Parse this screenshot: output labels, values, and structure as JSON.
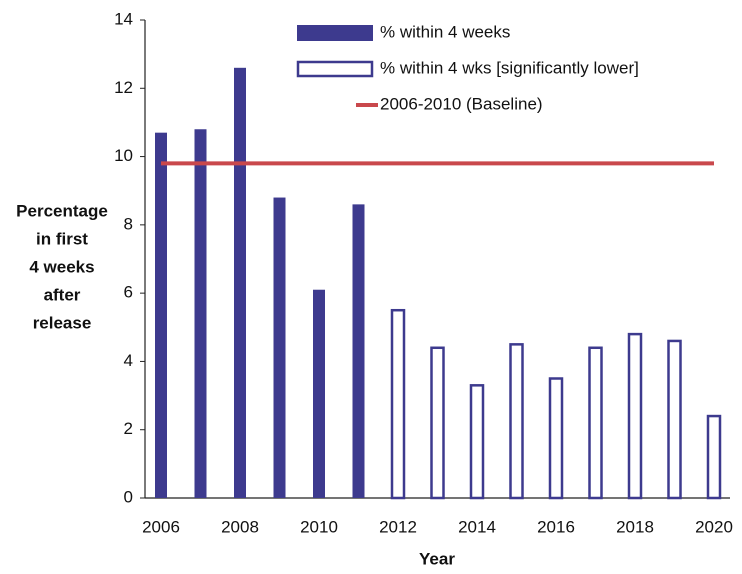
{
  "chart_data": {
    "type": "bar",
    "categories": [
      "2006",
      null,
      "2008",
      null,
      "2010",
      null,
      "2012",
      null,
      "2014",
      null,
      "2016",
      null,
      "2018",
      null,
      "2020"
    ],
    "series": [
      {
        "name": "% within 4 weeks",
        "type": "bar",
        "filled": true,
        "color": "#3d3a8e",
        "values": [
          10.7,
          10.8,
          12.6,
          8.8,
          6.1,
          8.6,
          null,
          null,
          null,
          null,
          null,
          null,
          null,
          null,
          null
        ]
      },
      {
        "name": "% within 4 wks [significantly lower]",
        "type": "bar",
        "filled": false,
        "color": "#3d3a8e",
        "values": [
          null,
          null,
          null,
          null,
          null,
          null,
          5.5,
          4.4,
          3.3,
          4.5,
          3.5,
          4.4,
          4.8,
          4.6,
          2.4
        ]
      },
      {
        "name": "2006-2010 (Baseline)",
        "type": "line",
        "color": "#c9484c",
        "values": [
          9.8,
          9.8,
          9.8,
          9.8,
          9.8,
          9.8,
          9.8,
          9.8,
          9.8,
          9.8,
          9.8,
          9.8,
          9.8,
          9.8,
          9.8
        ]
      }
    ],
    "xlabel": "Year",
    "ylabel": [
      "Percentage",
      "in first",
      "4 weeks",
      "after",
      "release"
    ],
    "ylim": [
      0,
      14
    ],
    "yticks": [
      0,
      2,
      4,
      6,
      8,
      10,
      12,
      14
    ],
    "grid": false,
    "legend": "top"
  }
}
